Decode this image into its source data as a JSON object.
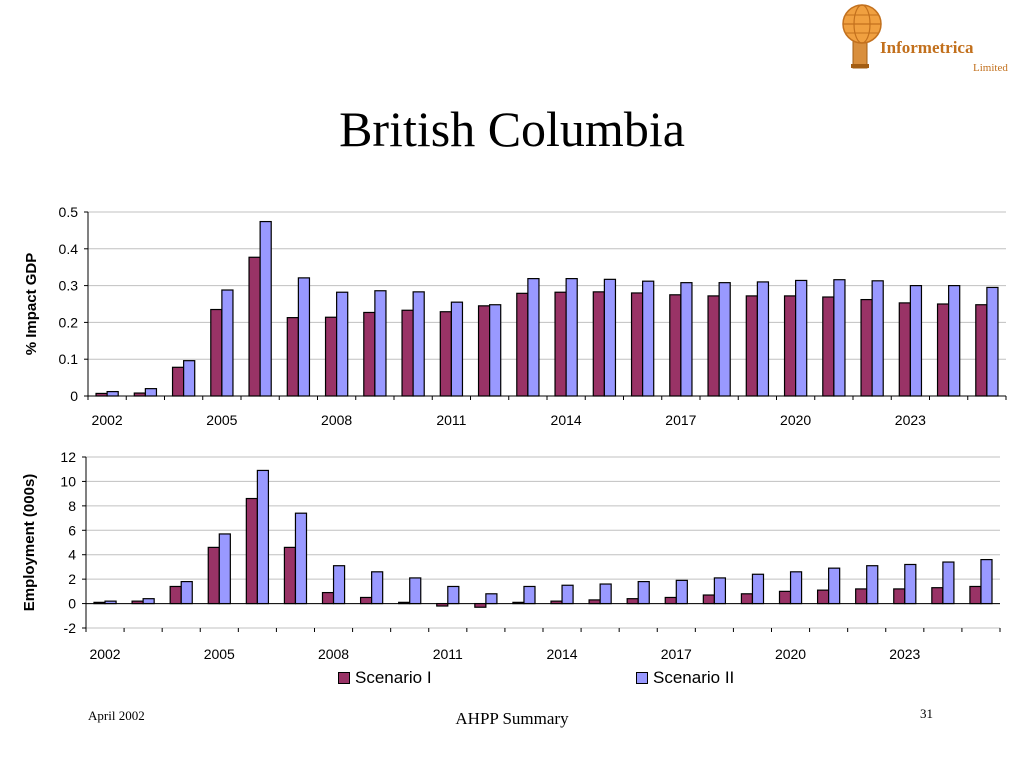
{
  "slide": {
    "title": "British Columbia",
    "footer_left": "April 2002",
    "footer_center": "AHPP Summary",
    "page_number": "31"
  },
  "logo": {
    "name": "Informetrica",
    "subtitle": "Limited",
    "icon": "globe-column-logo",
    "color": "#c2701d"
  },
  "colors": {
    "scenario_1": "#993366",
    "scenario_2": "#9999ff",
    "grid": "#c0c0c0"
  },
  "legend": {
    "scenario_1": "Scenario I",
    "scenario_2": "Scenario II"
  },
  "chart_data": [
    {
      "type": "bar",
      "ylabel": "% Impact GDP",
      "ylim": [
        0,
        0.5
      ],
      "yticks": [
        "0.5",
        "0.4",
        "0.3",
        "0.2",
        "0.1",
        "0"
      ],
      "ytick_values": [
        0.5,
        0.4,
        0.3,
        0.2,
        0.1,
        0
      ],
      "grid": true,
      "x_tick_labels": [
        "2002",
        "2005",
        "2008",
        "2011",
        "2014",
        "2017",
        "2020",
        "2023"
      ],
      "categories": [
        "2002",
        "2003",
        "2004",
        "2005",
        "2006",
        "2007",
        "2008",
        "2009",
        "2010",
        "2011",
        "2012",
        "2013",
        "2014",
        "2015",
        "2016",
        "2017",
        "2018",
        "2019",
        "2020",
        "2021",
        "2022",
        "2023",
        "2024",
        "2025"
      ],
      "series": [
        {
          "name": "Scenario I",
          "values": [
            0.007,
            0.008,
            0.078,
            0.235,
            0.377,
            0.213,
            0.214,
            0.227,
            0.233,
            0.229,
            0.245,
            0.279,
            0.282,
            0.283,
            0.28,
            0.275,
            0.272,
            0.272,
            0.272,
            0.269,
            0.262,
            0.253,
            0.25,
            0.248
          ]
        },
        {
          "name": "Scenario II",
          "values": [
            0.012,
            0.02,
            0.096,
            0.288,
            0.474,
            0.321,
            0.282,
            0.286,
            0.283,
            0.255,
            0.248,
            0.319,
            0.319,
            0.317,
            0.312,
            0.308,
            0.308,
            0.31,
            0.314,
            0.316,
            0.313,
            0.3,
            0.3,
            0.295
          ]
        }
      ]
    },
    {
      "type": "bar",
      "ylabel": "Employment (000s)",
      "ylim": [
        -2,
        12
      ],
      "yticks": [
        "12",
        "10",
        "8",
        "6",
        "4",
        "2",
        "0",
        "-2"
      ],
      "ytick_values": [
        12,
        10,
        8,
        6,
        4,
        2,
        0,
        -2
      ],
      "grid": true,
      "x_tick_labels": [
        "2002",
        "2005",
        "2008",
        "2011",
        "2014",
        "2017",
        "2020",
        "2023"
      ],
      "categories": [
        "2002",
        "2003",
        "2004",
        "2005",
        "2006",
        "2007",
        "2008",
        "2009",
        "2010",
        "2011",
        "2012",
        "2013",
        "2014",
        "2015",
        "2016",
        "2017",
        "2018",
        "2019",
        "2020",
        "2021",
        "2022",
        "2023",
        "2024",
        "2025"
      ],
      "series": [
        {
          "name": "Scenario I",
          "values": [
            0.1,
            0.2,
            1.4,
            4.6,
            8.6,
            4.6,
            0.9,
            0.5,
            0.1,
            -0.2,
            -0.3,
            0.1,
            0.2,
            0.3,
            0.4,
            0.5,
            0.7,
            0.8,
            1.0,
            1.1,
            1.2,
            1.2,
            1.3,
            1.4
          ]
        },
        {
          "name": "Scenario II",
          "values": [
            0.2,
            0.4,
            1.8,
            5.7,
            10.9,
            7.4,
            3.1,
            2.6,
            2.1,
            1.4,
            0.8,
            1.4,
            1.5,
            1.6,
            1.8,
            1.9,
            2.1,
            2.4,
            2.6,
            2.9,
            3.1,
            3.2,
            3.4,
            3.6
          ]
        }
      ]
    }
  ]
}
